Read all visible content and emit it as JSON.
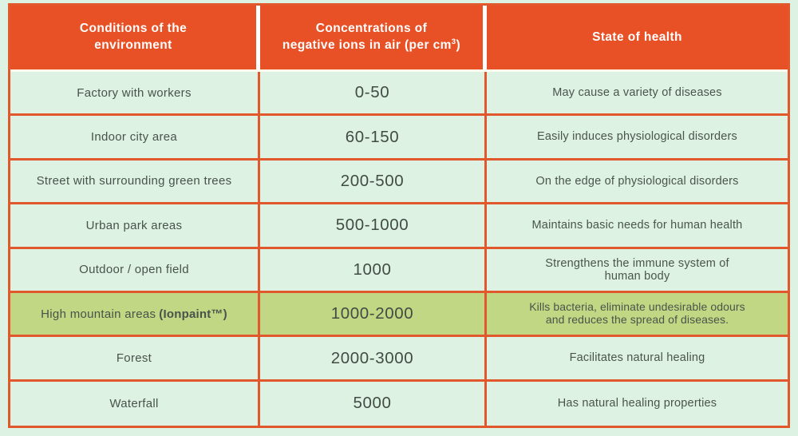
{
  "colors": {
    "header_bg": "#e85125",
    "header_text": "#ffffff",
    "border": "#e0582c",
    "row_bg": "#def2e4",
    "highlight_row_bg": "#c2d783",
    "body_text": "#47534b"
  },
  "table": {
    "headers": {
      "conditions": {
        "line1": "Conditions of the",
        "line2": "environment"
      },
      "concentrations": {
        "line1": "Concentrations of",
        "line2_pre": "negative ions in air (per cm",
        "line2_sup": "3",
        "line2_post": ")"
      },
      "health": {
        "label": "State of health"
      }
    },
    "rows": [
      {
        "environment": "Factory with workers",
        "concentration": "0-50",
        "health_lines": [
          "May cause a variety of diseases"
        ]
      },
      {
        "environment": "Indoor city area",
        "concentration": "60-150",
        "health_lines": [
          "Easily induces physiological disorders"
        ]
      },
      {
        "environment": "Street with surrounding green trees",
        "concentration": "200-500",
        "health_lines": [
          "On the edge of physiological disorders"
        ]
      },
      {
        "environment": "Urban park areas",
        "concentration": "500-1000",
        "health_lines": [
          "Maintains basic needs for human health"
        ]
      },
      {
        "environment": "Outdoor / open field",
        "concentration": "1000",
        "health_lines": [
          "Strengthens the immune system of",
          "human body"
        ]
      },
      {
        "environment": "High mountain areas",
        "environment_bold": "(Ionpaint™)",
        "concentration": "1000-2000",
        "health_lines": [
          "Kills bacteria, eliminate undesirable odours",
          "and reduces the spread of diseases."
        ],
        "highlighted": true
      },
      {
        "environment": "Forest",
        "concentration": "2000-3000",
        "health_lines": [
          "Facilitates natural healing"
        ]
      },
      {
        "environment": "Waterfall",
        "concentration": "5000",
        "health_lines": [
          "Has natural healing properties"
        ]
      }
    ]
  }
}
